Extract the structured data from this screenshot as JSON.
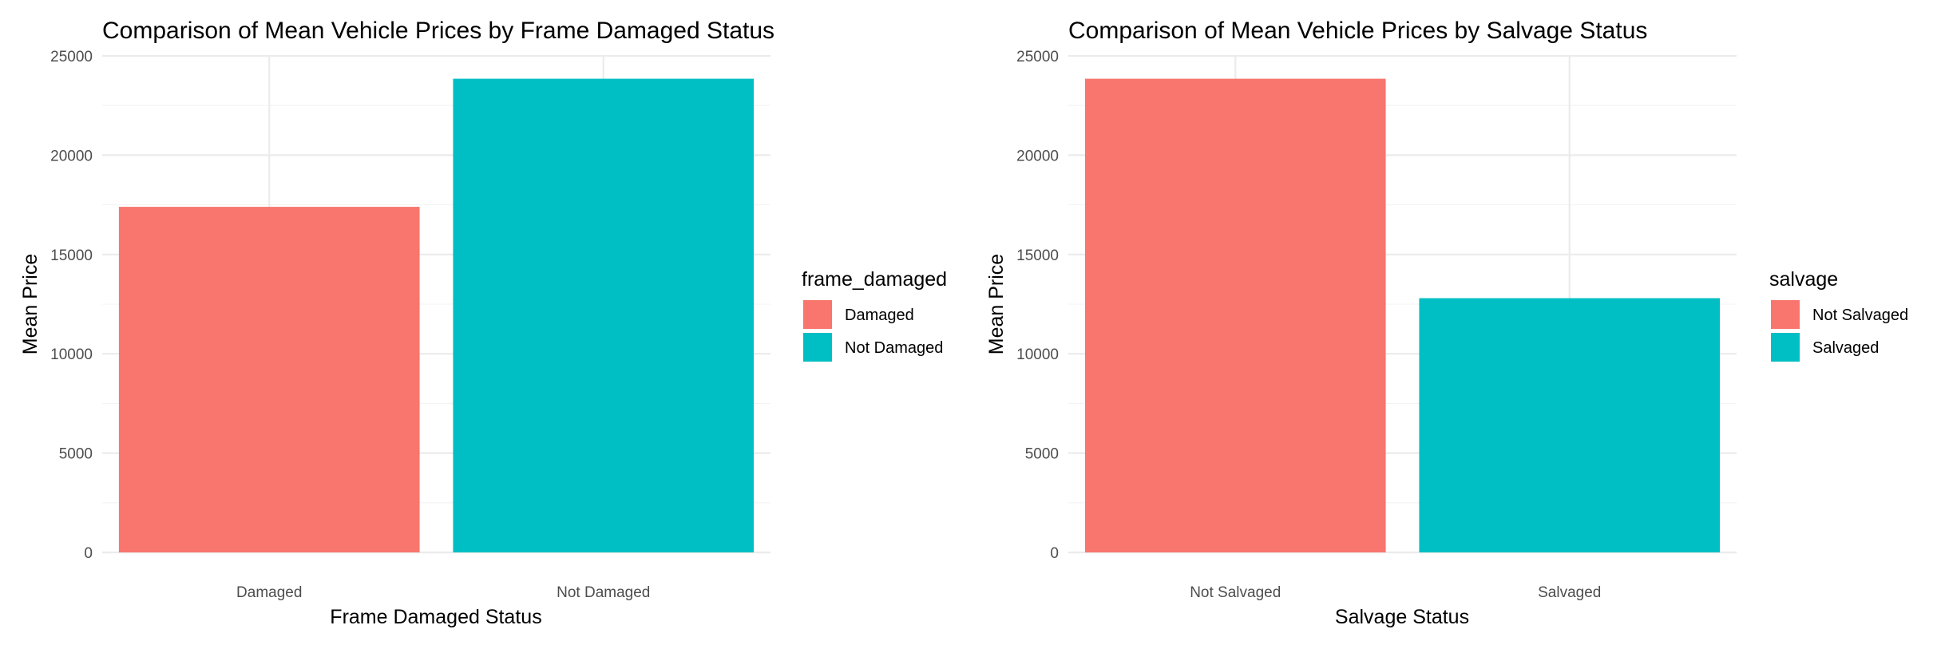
{
  "chart_data": [
    {
      "type": "bar",
      "title": "Comparison of Mean Vehicle Prices by Frame Damaged Status",
      "xlabel": "Frame Damaged Status",
      "ylabel": "Mean Price",
      "categories": [
        "Damaged",
        "Not Damaged"
      ],
      "values": [
        17400,
        23850
      ],
      "colors": [
        "#F8766D",
        "#00BFC4"
      ],
      "ylim": [
        0,
        25000
      ],
      "yticks": [
        0,
        5000,
        10000,
        15000,
        20000,
        25000
      ],
      "ytick_labels": [
        "0",
        "5000",
        "10000",
        "15000",
        "20000",
        "25000"
      ],
      "grid": true,
      "legend": {
        "title": "frame_damaged",
        "placement": "right",
        "entries": [
          "Damaged",
          "Not Damaged"
        ]
      }
    },
    {
      "type": "bar",
      "title": "Comparison of Mean Vehicle Prices by Salvage Status",
      "xlabel": "Salvage Status",
      "ylabel": "Mean Price",
      "categories": [
        "Not Salvaged",
        "Salvaged"
      ],
      "values": [
        23850,
        12800
      ],
      "colors": [
        "#F8766D",
        "#00BFC4"
      ],
      "ylim": [
        0,
        25000
      ],
      "yticks": [
        0,
        5000,
        10000,
        15000,
        20000,
        25000
      ],
      "ytick_labels": [
        "0",
        "5000",
        "10000",
        "15000",
        "20000",
        "25000"
      ],
      "grid": true,
      "legend": {
        "title": "salvage",
        "placement": "right",
        "entries": [
          "Not Salvaged",
          "Salvaged"
        ]
      }
    }
  ]
}
